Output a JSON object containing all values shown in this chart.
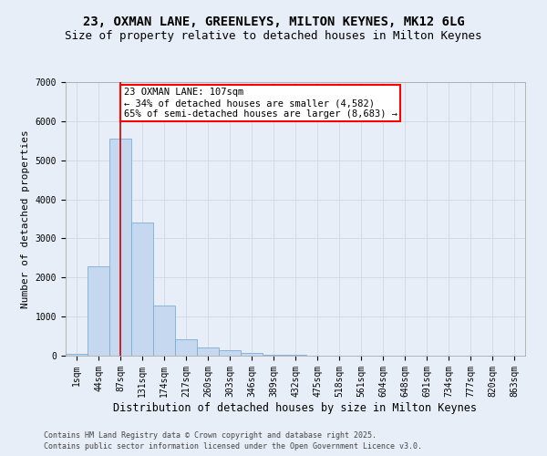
{
  "title_line1": "23, OXMAN LANE, GREENLEYS, MILTON KEYNES, MK12 6LG",
  "title_line2": "Size of property relative to detached houses in Milton Keynes",
  "xlabel": "Distribution of detached houses by size in Milton Keynes",
  "ylabel": "Number of detached properties",
  "categories": [
    "1sqm",
    "44sqm",
    "87sqm",
    "131sqm",
    "174sqm",
    "217sqm",
    "260sqm",
    "303sqm",
    "346sqm",
    "389sqm",
    "432sqm",
    "475sqm",
    "518sqm",
    "561sqm",
    "604sqm",
    "648sqm",
    "691sqm",
    "734sqm",
    "777sqm",
    "820sqm",
    "863sqm"
  ],
  "values": [
    50,
    2280,
    5550,
    3400,
    1280,
    420,
    200,
    150,
    80,
    30,
    15,
    10,
    5,
    3,
    2,
    1,
    1,
    0,
    0,
    0,
    0
  ],
  "bar_color": "#c5d8f0",
  "bar_edge_color": "#7bafd4",
  "red_line_x": 2.0,
  "annotation_text": "23 OXMAN LANE: 107sqm\n← 34% of detached houses are smaller (4,582)\n65% of semi-detached houses are larger (8,683) →",
  "annotation_box_color": "white",
  "annotation_box_edge_color": "red",
  "red_line_color": "#cc0000",
  "grid_color": "#d0d8e8",
  "background_color": "#e8eef8",
  "footer_line1": "Contains HM Land Registry data © Crown copyright and database right 2025.",
  "footer_line2": "Contains public sector information licensed under the Open Government Licence v3.0.",
  "ylim": [
    0,
    7000
  ],
  "title_fontsize": 10,
  "subtitle_fontsize": 9,
  "tick_fontsize": 7,
  "ylabel_fontsize": 8,
  "xlabel_fontsize": 8.5,
  "annotation_fontsize": 7.5,
  "footer_fontsize": 6
}
